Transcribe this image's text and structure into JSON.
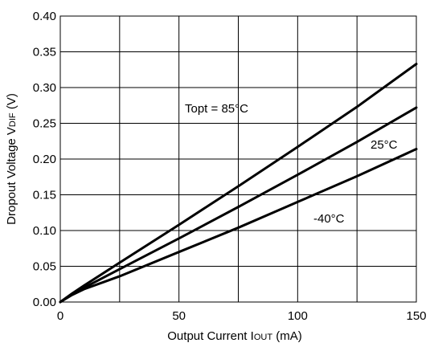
{
  "chart_data": {
    "type": "line",
    "title": "",
    "xlabel": {
      "main": "Output Current I",
      "sub": "OUT",
      "unit": " (mA)"
    },
    "ylabel": {
      "main": "Dropout Voltage V",
      "sub": "DIF",
      "unit": " (V)"
    },
    "xlim": [
      0,
      150
    ],
    "ylim": [
      0,
      0.4
    ],
    "xticks": [
      0,
      50,
      100,
      150
    ],
    "xtick_labels": [
      "0",
      "50",
      "100",
      "150"
    ],
    "yticks": [
      0,
      0.05,
      0.1,
      0.15,
      0.2,
      0.25,
      0.3,
      0.35,
      0.4
    ],
    "ytick_labels": [
      "0.00",
      "0.05",
      "0.10",
      "0.15",
      "0.20",
      "0.25",
      "0.30",
      "0.35",
      "0.40"
    ],
    "grid": true,
    "grid_x": [
      25,
      50,
      75,
      100,
      125
    ],
    "grid_y": [
      0.05,
      0.1,
      0.15,
      0.2,
      0.25,
      0.3,
      0.35
    ],
    "series": [
      {
        "name": "Topt = 85°C",
        "x": [
          0,
          5,
          10,
          25,
          50,
          75,
          100,
          125,
          150
        ],
        "y": [
          0,
          0.012,
          0.023,
          0.055,
          0.108,
          0.162,
          0.217,
          0.273,
          0.333
        ]
      },
      {
        "name": "25°C",
        "x": [
          0,
          5,
          10,
          25,
          50,
          75,
          100,
          125,
          150
        ],
        "y": [
          0,
          0.011,
          0.02,
          0.046,
          0.089,
          0.133,
          0.178,
          0.224,
          0.272
        ]
      },
      {
        "name": "-40°C",
        "x": [
          0,
          5,
          10,
          25,
          50,
          75,
          100,
          125,
          150
        ],
        "y": [
          0,
          0.01,
          0.018,
          0.036,
          0.07,
          0.104,
          0.14,
          0.176,
          0.214
        ]
      }
    ],
    "colors": {
      "series": "#000000",
      "grid": "#000000",
      "text": "#000000",
      "background": "#ffffff"
    }
  }
}
